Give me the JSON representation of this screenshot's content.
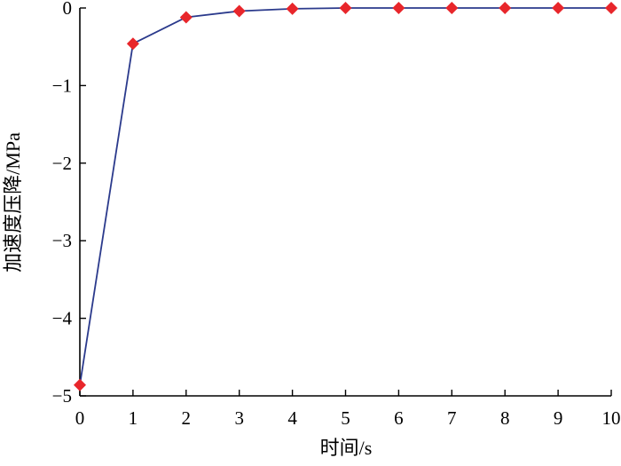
{
  "chart_data": {
    "type": "line",
    "xlabel": "时间/s",
    "ylabel": "加速度压降/MPa",
    "xlim": [
      0,
      10
    ],
    "ylim": [
      -5,
      0
    ],
    "x_ticks": [
      "0",
      "1",
      "2",
      "3",
      "4",
      "5",
      "6",
      "7",
      "8",
      "9",
      "10"
    ],
    "y_ticks": [
      "0",
      "−1",
      "−2",
      "−3",
      "−4",
      "−5"
    ],
    "x_tick_values": [
      0,
      1,
      2,
      3,
      4,
      5,
      6,
      7,
      8,
      9,
      10
    ],
    "y_tick_values": [
      0,
      -1,
      -2,
      -3,
      -4,
      -5
    ],
    "grid": false,
    "series": [
      {
        "x": [
          0,
          1,
          2,
          3,
          4,
          5,
          6,
          7,
          8,
          9,
          10
        ],
        "values": [
          -4.86,
          -0.46,
          -0.12,
          -0.04,
          -0.01,
          0,
          0,
          0,
          0,
          0,
          0
        ],
        "line_color": "#2b3a8c",
        "marker_color": "#e8262b",
        "marker": "diamond"
      }
    ]
  }
}
